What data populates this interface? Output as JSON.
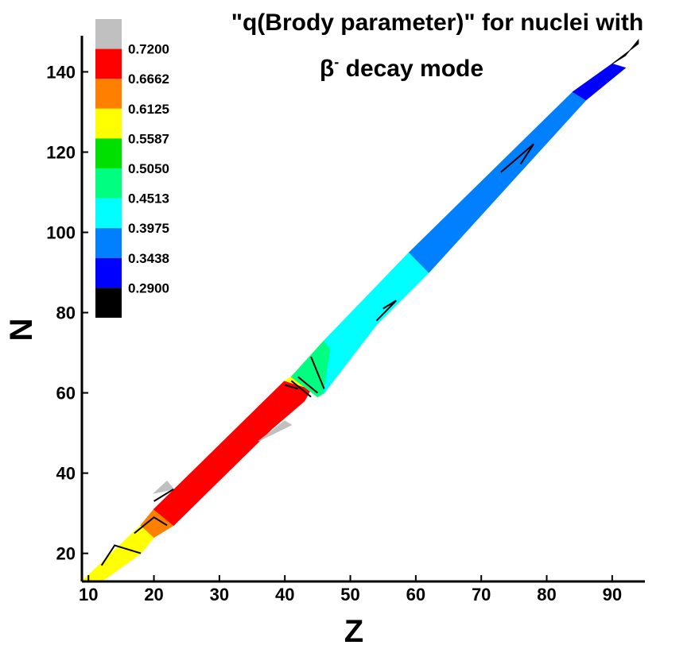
{
  "chart_data": {
    "type": "contour",
    "title_line1": "\"q(Brody parameter)\" for nuclei with",
    "title_line2_symbol": "β",
    "title_line2_superscript": "-",
    "title_line2_rest": " decay mode",
    "xlabel": "Z",
    "ylabel": "N",
    "xlim": [
      9,
      95
    ],
    "ylim": [
      13,
      149
    ],
    "xticks": [
      10,
      20,
      30,
      40,
      50,
      60,
      70,
      80,
      90
    ],
    "yticks": [
      20,
      40,
      60,
      80,
      100,
      120,
      140
    ],
    "levels": [
      {
        "label": "0.7200",
        "value": 0.72,
        "color": "#c0c0c0"
      },
      {
        "label": "0.6662",
        "value": 0.6662,
        "color": "#ff0000"
      },
      {
        "label": "0.6125",
        "value": 0.6125,
        "color": "#ff8000"
      },
      {
        "label": "0.5587",
        "value": 0.5587,
        "color": "#ffff00"
      },
      {
        "label": "0.5050",
        "value": 0.505,
        "color": "#00e000"
      },
      {
        "label": "0.4513",
        "value": 0.4513,
        "color": "#00ff80"
      },
      {
        "label": "0.3975",
        "value": 0.3975,
        "color": "#00ffff"
      },
      {
        "label": "0.3438",
        "value": 0.3438,
        "color": "#0080ff"
      },
      {
        "label": "0.2900",
        "value": 0.29,
        "color": "#0000ff"
      }
    ],
    "legend_bottom_color": "#000000",
    "bands": [
      {
        "level": "0.5587",
        "color": "#ffff00",
        "points": [
          [
            9,
            13
          ],
          [
            18,
            27
          ],
          [
            20,
            24
          ],
          [
            18,
            20
          ],
          [
            12,
            13
          ]
        ]
      },
      {
        "level": "0.6125",
        "color": "#ff8000",
        "points": [
          [
            18,
            27
          ],
          [
            20,
            31
          ],
          [
            23,
            27
          ],
          [
            20,
            24
          ]
        ]
      },
      {
        "level": "0.6662",
        "color": "#ff0000",
        "points": [
          [
            20,
            31
          ],
          [
            40,
            63
          ],
          [
            44,
            61
          ],
          [
            43,
            58
          ],
          [
            38,
            51
          ],
          [
            23,
            27
          ]
        ]
      },
      {
        "level": "0.5587",
        "color": "#ffff00",
        "points": [
          [
            40,
            63
          ],
          [
            41,
            64
          ],
          [
            45,
            59
          ],
          [
            44,
            61
          ]
        ]
      },
      {
        "level": "0.4513",
        "color": "#00ff80",
        "points": [
          [
            41,
            64
          ],
          [
            46,
            73
          ],
          [
            47,
            71
          ],
          [
            46,
            60
          ],
          [
            45,
            59
          ]
        ]
      },
      {
        "level": "0.3975",
        "color": "#00ffff",
        "points": [
          [
            46,
            73
          ],
          [
            59,
            95
          ],
          [
            62,
            90
          ],
          [
            54,
            77
          ],
          [
            46,
            60
          ],
          [
            47,
            71
          ]
        ]
      },
      {
        "level": "0.3438",
        "color": "#0080ff",
        "points": [
          [
            59,
            95
          ],
          [
            84,
            135
          ],
          [
            86,
            133
          ],
          [
            62,
            90
          ]
        ]
      },
      {
        "level": "0.2900",
        "color": "#0000ff",
        "points": [
          [
            84,
            135
          ],
          [
            90,
            142
          ],
          [
            92,
            141
          ],
          [
            86,
            133
          ]
        ]
      },
      {
        "level": "below",
        "color": "#000000",
        "points": [
          [
            90,
            142
          ],
          [
            94,
            147
          ],
          [
            94,
            148
          ],
          [
            92,
            144
          ]
        ]
      },
      {
        "level": "0.7200",
        "color": "#c0c0c0",
        "points": [
          [
            20,
            35
          ],
          [
            22,
            38
          ],
          [
            23,
            36
          ]
        ]
      },
      {
        "level": "0.7200",
        "color": "#c0c0c0",
        "points": [
          [
            36,
            48
          ],
          [
            40,
            53
          ],
          [
            41,
            52
          ]
        ]
      }
    ],
    "contours": [
      [
        [
          12,
          17
        ],
        [
          14,
          22
        ],
        [
          18,
          20
        ]
      ],
      [
        [
          17,
          25
        ],
        [
          20,
          29
        ],
        [
          22,
          27
        ]
      ],
      [
        [
          20,
          33
        ],
        [
          23,
          36
        ]
      ],
      [
        [
          40,
          62
        ],
        [
          42,
          61
        ]
      ],
      [
        [
          41,
          63
        ],
        [
          44,
          59
        ]
      ],
      [
        [
          42,
          64
        ],
        [
          45,
          60
        ]
      ],
      [
        [
          44,
          69
        ],
        [
          46,
          61
        ]
      ],
      [
        [
          55,
          81
        ],
        [
          57,
          83
        ],
        [
          54,
          78
        ]
      ],
      [
        [
          73,
          115
        ],
        [
          78,
          122
        ],
        [
          76,
          117
        ]
      ]
    ]
  }
}
